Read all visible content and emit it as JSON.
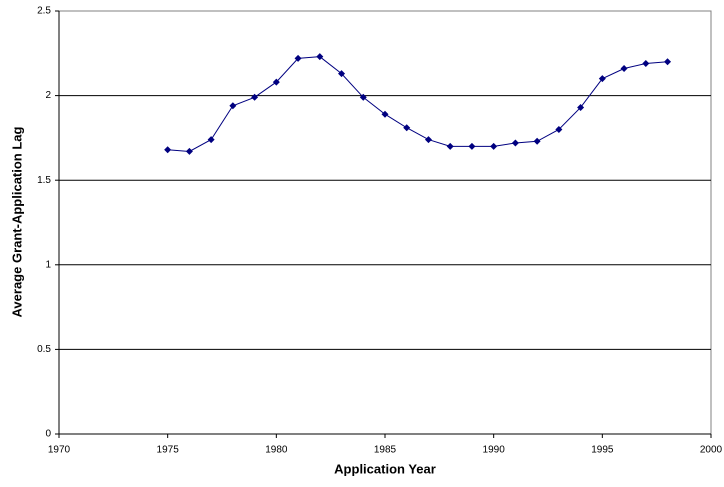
{
  "chart_data": {
    "type": "line",
    "x_label": "Application Year",
    "y_label": "Average Grant-Application Lag",
    "x": [
      1975,
      1976,
      1977,
      1978,
      1979,
      1980,
      1981,
      1982,
      1983,
      1984,
      1985,
      1986,
      1987,
      1988,
      1989,
      1990,
      1991,
      1992,
      1993,
      1994,
      1995,
      1996,
      1997,
      1998
    ],
    "values": [
      1.68,
      1.67,
      1.74,
      1.94,
      1.99,
      2.08,
      2.22,
      2.23,
      2.13,
      1.99,
      1.89,
      1.81,
      1.74,
      1.7,
      1.7,
      1.7,
      1.72,
      1.73,
      1.8,
      1.93,
      2.1,
      2.16,
      2.19,
      2.2
    ],
    "color": "#000080",
    "xlim": [
      1970,
      2000
    ],
    "xticks": [
      1970,
      1975,
      1980,
      1985,
      1990,
      1995,
      2000
    ],
    "ylim": [
      0,
      2.5
    ],
    "yticks": [
      0,
      0.5,
      1,
      1.5,
      2,
      2.5
    ],
    "grid": true
  }
}
